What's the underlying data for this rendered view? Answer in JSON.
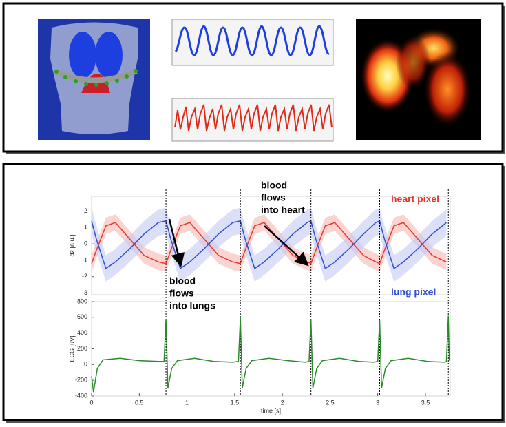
{
  "chart_data": [
    {
      "type": "line",
      "ylabel": "dz [a.u.]",
      "x": [
        0,
        0.05,
        0.15,
        0.25,
        0.4,
        0.55,
        0.7,
        0.78,
        0.83,
        0.93,
        1.03,
        1.18,
        1.33,
        1.48,
        1.56,
        1.61,
        1.71,
        1.81,
        1.96,
        2.11,
        2.26,
        2.3,
        2.35,
        2.45,
        2.55,
        2.7,
        2.85,
        2.98,
        3.02,
        3.07,
        3.17,
        3.27,
        3.42,
        3.57,
        3.72
      ],
      "xlim": [
        0,
        3.76
      ],
      "ylim": [
        -3.1,
        2.9
      ],
      "yticks": [
        -3,
        -2,
        -1,
        0,
        1,
        2
      ],
      "vlines": [
        0.78,
        1.56,
        2.3,
        3.02,
        3.74
      ],
      "series": [
        {
          "name": "heart pixel",
          "color": "#e8372c",
          "band_color": "#f7b8b3",
          "values": [
            -1.2,
            -0.4,
            1.1,
            1.3,
            0.3,
            -0.7,
            -1.1,
            -1.2,
            -0.4,
            1.1,
            1.3,
            0.3,
            -0.7,
            -1.1,
            -1.2,
            -0.4,
            1.1,
            1.3,
            0.3,
            -0.7,
            -1.1,
            -1.2,
            -0.4,
            1.1,
            1.3,
            0.3,
            -0.7,
            -1.1,
            -1.2,
            -0.4,
            1.1,
            1.3,
            0.3,
            -0.7,
            -1.1
          ],
          "lower": [
            -1.7,
            -0.9,
            0.6,
            0.8,
            -0.2,
            -1.2,
            -1.6,
            -1.7,
            -0.9,
            0.6,
            0.8,
            -0.2,
            -1.2,
            -1.6,
            -1.7,
            -0.9,
            0.6,
            0.8,
            -0.2,
            -1.2,
            -1.6,
            -1.7,
            -0.9,
            0.6,
            0.8,
            -0.2,
            -1.2,
            -1.6,
            -1.7,
            -0.9,
            0.6,
            0.8,
            -0.2,
            -1.2,
            -1.6
          ],
          "upper": [
            -0.7,
            0.1,
            1.6,
            1.8,
            0.8,
            -0.2,
            -0.6,
            -0.7,
            0.1,
            1.6,
            1.8,
            0.8,
            -0.2,
            -0.6,
            -0.7,
            0.1,
            1.6,
            1.8,
            0.8,
            -0.2,
            -0.6,
            -0.7,
            0.1,
            1.6,
            1.8,
            0.8,
            -0.2,
            -0.6,
            -0.7,
            0.1,
            1.6,
            1.8,
            0.8,
            -0.2,
            -0.6
          ]
        },
        {
          "name": "lung pixel",
          "color": "#2e4fd0",
          "band_color": "#c3c9f3",
          "values": [
            1.4,
            0.3,
            -1.5,
            -1.1,
            -0.3,
            0.6,
            1.3,
            1.4,
            0.3,
            -1.5,
            -1.1,
            -0.3,
            0.6,
            1.3,
            1.4,
            0.3,
            -1.5,
            -1.1,
            -0.3,
            0.6,
            1.3,
            1.4,
            0.3,
            -1.5,
            -1.1,
            -0.3,
            0.6,
            1.3,
            1.4,
            0.3,
            -1.5,
            -1.1,
            -0.3,
            0.6,
            1.3
          ],
          "lower": [
            0.6,
            -0.5,
            -2.3,
            -1.9,
            -1.1,
            -0.2,
            0.5,
            0.6,
            -0.5,
            -2.3,
            -1.9,
            -1.1,
            -0.2,
            0.5,
            0.6,
            -0.5,
            -2.3,
            -1.9,
            -1.1,
            -0.2,
            0.5,
            0.6,
            -0.5,
            -2.3,
            -1.9,
            -1.1,
            -0.2,
            0.5,
            0.6,
            -0.5,
            -2.3,
            -1.9,
            -1.1,
            -0.2,
            0.5
          ],
          "upper": [
            2.2,
            1.1,
            -0.7,
            -0.3,
            0.5,
            1.4,
            2.1,
            2.2,
            1.1,
            -0.7,
            -0.3,
            0.5,
            1.4,
            2.1,
            2.2,
            1.1,
            -0.7,
            -0.3,
            0.5,
            1.4,
            2.1,
            2.2,
            1.1,
            -0.7,
            -0.3,
            0.5,
            1.4,
            2.1,
            2.2,
            1.1,
            -0.7,
            -0.3,
            0.5,
            1.4,
            2.1
          ]
        }
      ],
      "annotations": [
        [
          "blood",
          "flows",
          "into heart"
        ],
        [
          "blood",
          "flows",
          "into lungs"
        ]
      ]
    },
    {
      "type": "line",
      "ylabel": "ECG [uV]",
      "xlabel": "time [s]",
      "x": [
        0,
        0.02,
        0.06,
        0.12,
        0.3,
        0.5,
        0.7,
        0.76,
        0.78,
        0.8,
        0.84,
        0.9,
        1.08,
        1.28,
        1.48,
        1.54,
        1.56,
        1.58,
        1.62,
        1.68,
        1.86,
        2.06,
        2.24,
        2.28,
        2.3,
        2.32,
        2.36,
        2.42,
        2.6,
        2.8,
        2.96,
        3.0,
        3.02,
        3.04,
        3.08,
        3.14,
        3.32,
        3.52,
        3.7,
        3.72,
        3.74,
        3.75
      ],
      "xlim": [
        0,
        3.76
      ],
      "xticks": [
        0,
        0.5,
        1,
        1.5,
        2,
        2.5,
        3,
        3.5
      ],
      "ylim": [
        -400,
        800
      ],
      "yticks": [
        -400,
        -200,
        0,
        200,
        400,
        600,
        800
      ],
      "series": [
        {
          "color": "#2a8a2a",
          "values": [
            -150,
            -350,
            -50,
            60,
            80,
            50,
            40,
            40,
            580,
            -300,
            -50,
            50,
            80,
            40,
            30,
            40,
            600,
            -300,
            -50,
            50,
            80,
            50,
            30,
            40,
            580,
            -300,
            -50,
            50,
            80,
            40,
            30,
            40,
            570,
            -300,
            -50,
            50,
            80,
            40,
            30,
            40,
            620,
            50
          ]
        }
      ]
    }
  ]
}
